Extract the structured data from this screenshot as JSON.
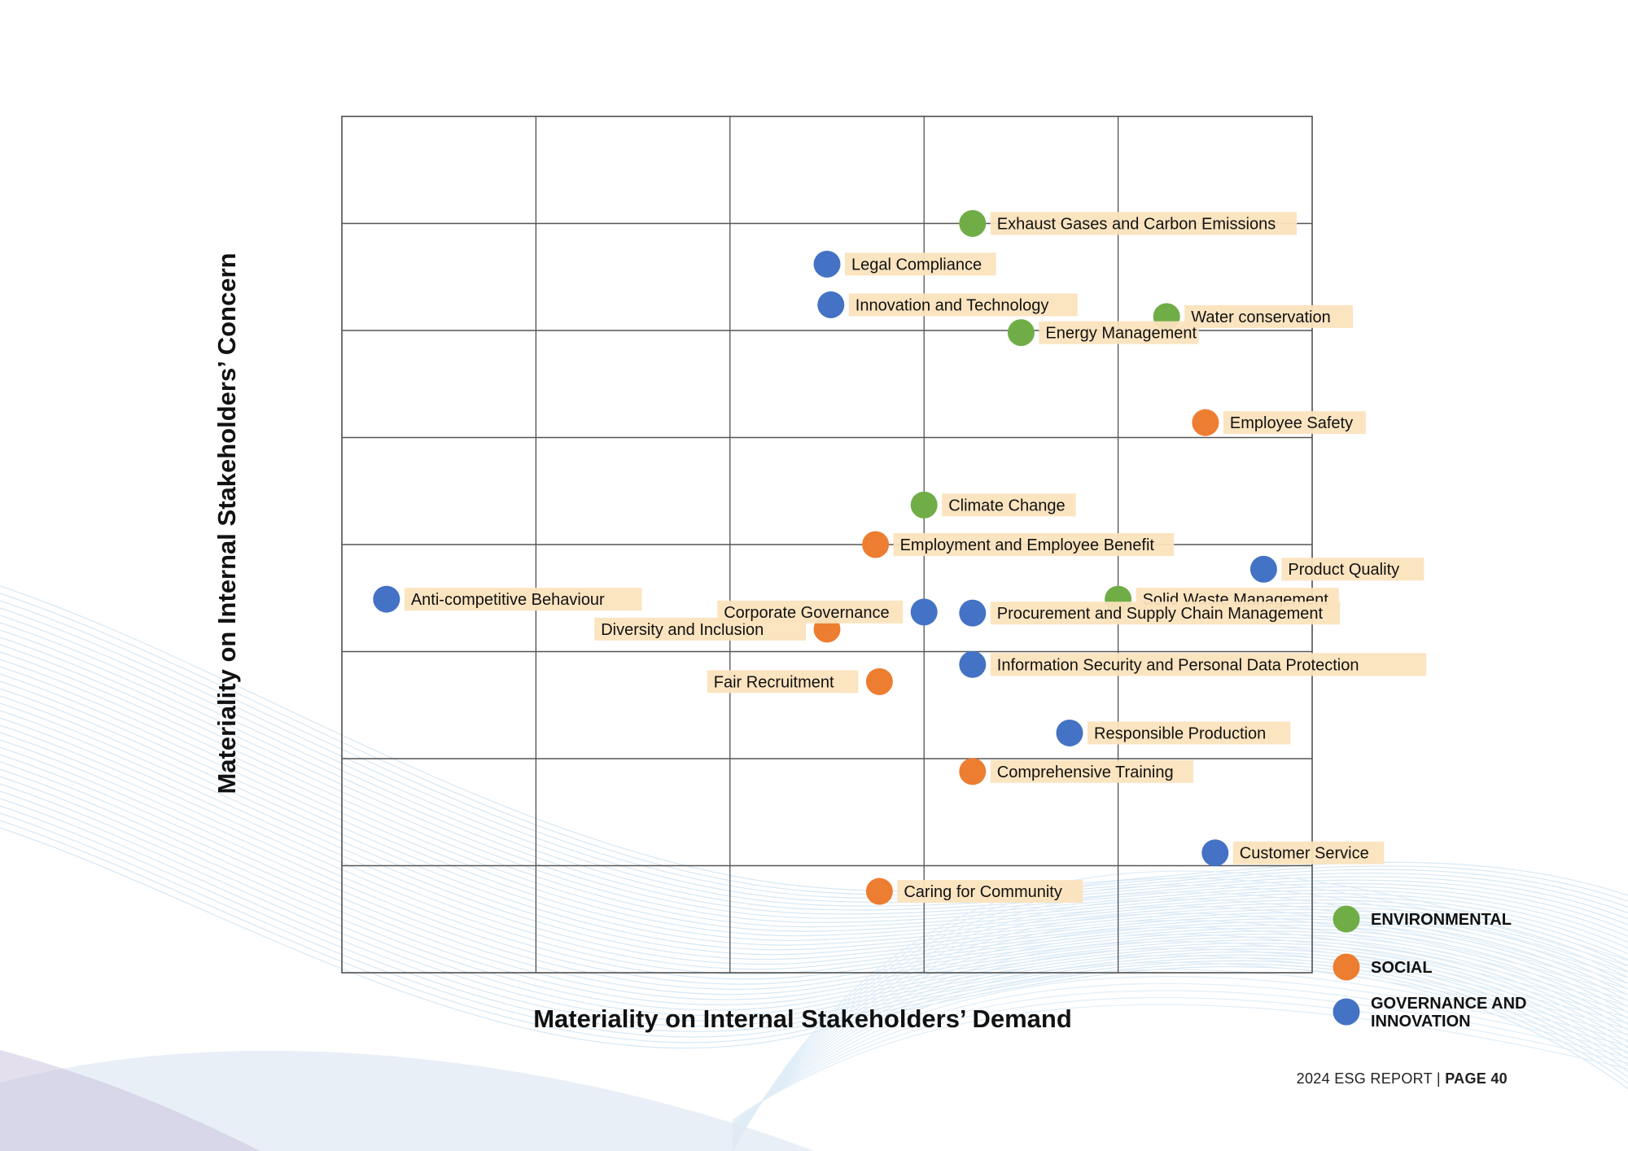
{
  "chart_data": {
    "type": "scatter",
    "xlabel": "Materiality on Internal Stakeholders’ Demand",
    "ylabel": "Materiality on Internal Stakeholders’ Concern",
    "xlim": [
      0,
      5
    ],
    "ylim": [
      0,
      8
    ],
    "grid": true,
    "legend_position": "bottom-right",
    "series": [
      {
        "name": "ENVIRONMENTAL",
        "color": "#70ad47",
        "points": [
          {
            "label": "Exhaust Gases and Carbon Emissions",
            "x": 3.25,
            "y": 7.0
          },
          {
            "label": "Water conservation",
            "x": 4.25,
            "y": 6.13
          },
          {
            "label": "Energy Management",
            "x": 3.5,
            "y": 5.98
          },
          {
            "label": "Climate Change",
            "x": 3.0,
            "y": 4.37
          },
          {
            "label": "Solid Waste Management",
            "x": 4.0,
            "y": 3.49
          }
        ]
      },
      {
        "name": "SOCIAL",
        "color": "#ed7d31",
        "points": [
          {
            "label": "Employee Safety",
            "x": 4.45,
            "y": 5.14
          },
          {
            "label": "Employment and Employee Benefit",
            "x": 2.75,
            "y": 4.0
          },
          {
            "label": "Diversity and Inclusion",
            "x": 2.5,
            "y": 3.21
          },
          {
            "label": "Fair Recruitment",
            "x": 2.77,
            "y": 2.72
          },
          {
            "label": "Comprehensive Training",
            "x": 3.25,
            "y": 1.88
          },
          {
            "label": "Caring for Community",
            "x": 2.77,
            "y": 0.76
          }
        ]
      },
      {
        "name": "GOVERNANCE AND INNOVATION",
        "color": "#4472c4",
        "points": [
          {
            "label": "Legal Compliance",
            "x": 2.5,
            "y": 6.62
          },
          {
            "label": "Innovation and Technology",
            "x": 2.52,
            "y": 6.24
          },
          {
            "label": "Product Quality",
            "x": 4.75,
            "y": 3.77
          },
          {
            "label": "Anti-competitive Behaviour",
            "x": 0.23,
            "y": 3.49
          },
          {
            "label": "Corporate Governance",
            "x": 3.0,
            "y": 3.37
          },
          {
            "label": "Procurement and Supply Chain Management",
            "x": 3.25,
            "y": 3.36
          },
          {
            "label": "Information Security and Personal Data Protection",
            "x": 3.25,
            "y": 2.88
          },
          {
            "label": "Responsible Production",
            "x": 3.75,
            "y": 2.24
          },
          {
            "label": "Customer Service",
            "x": 4.5,
            "y": 1.12
          }
        ]
      }
    ]
  },
  "footer": {
    "report": "2024 ESG REPORT",
    "separator": "|",
    "page": "PAGE 40"
  }
}
